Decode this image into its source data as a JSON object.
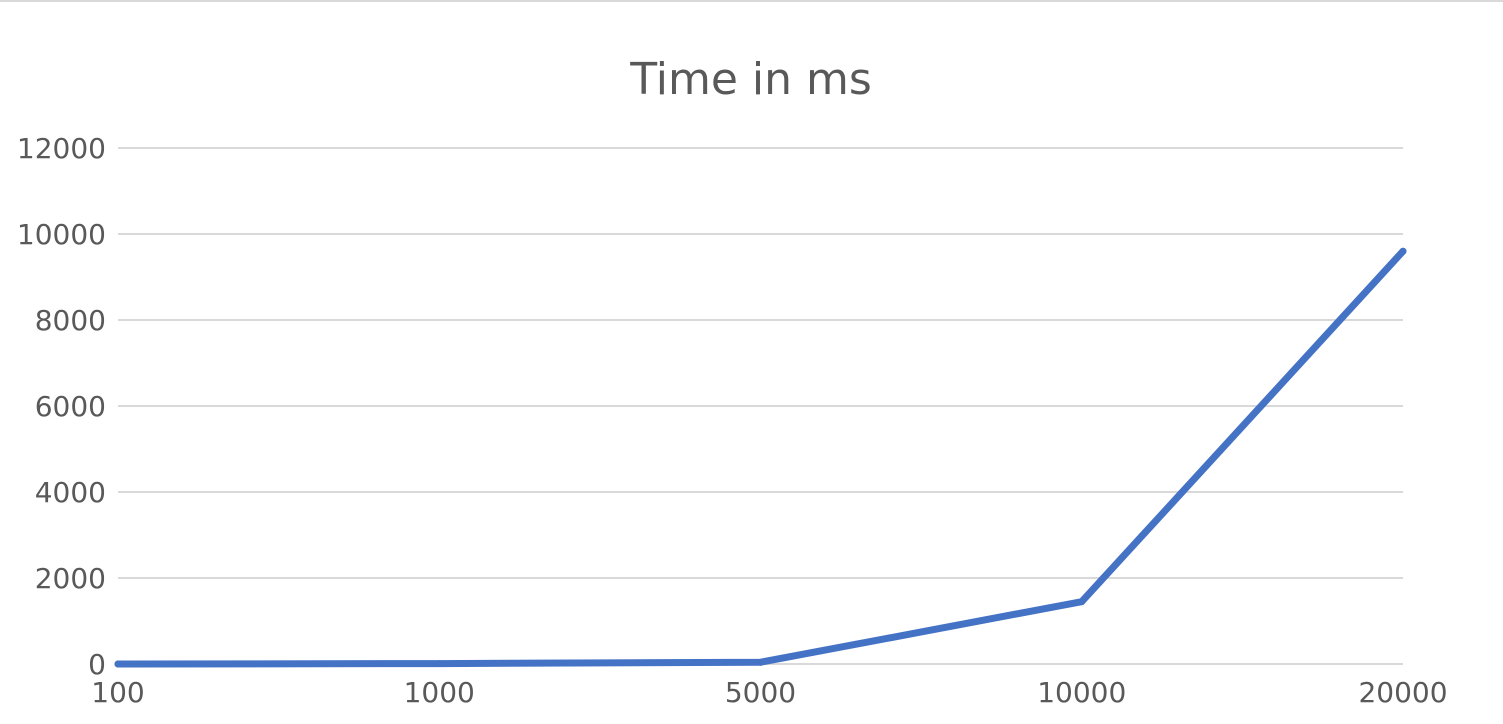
{
  "chart_data": {
    "type": "line",
    "title": "Time in ms",
    "xlabel": "",
    "ylabel": "",
    "categories": [
      "100",
      "1000",
      "5000",
      "10000",
      "20000"
    ],
    "series": [
      {
        "values": [
          0,
          10,
          40,
          1450,
          9600
        ]
      }
    ],
    "ylim": [
      0,
      12000
    ],
    "yticks": [
      0,
      2000,
      4000,
      6000,
      8000,
      10000,
      12000
    ],
    "grid": true,
    "legend": "none",
    "colors": {
      "line": "#4472c4",
      "grid": "#d9d9d9",
      "text": "#595959"
    }
  }
}
